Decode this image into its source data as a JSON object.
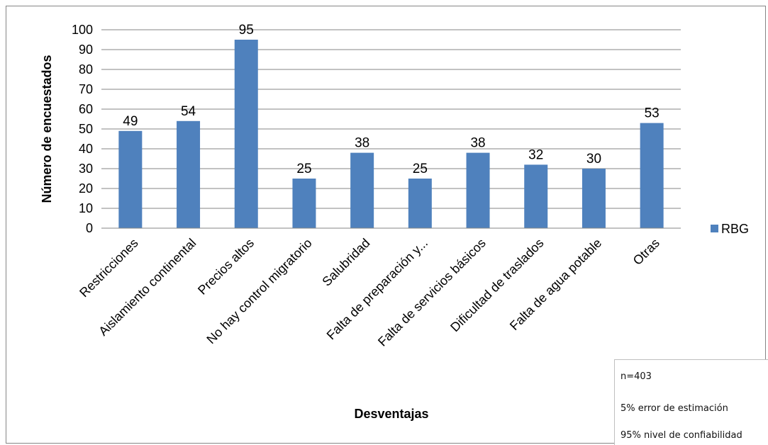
{
  "chart_data": {
    "type": "bar",
    "title": "",
    "xlabel": "Desventajas",
    "ylabel": "Número de encuestados",
    "ylim": [
      0,
      100
    ],
    "yticks": [
      0,
      10,
      20,
      30,
      40,
      50,
      60,
      70,
      80,
      90,
      100
    ],
    "grid": true,
    "legend_position": "right",
    "categories": [
      "Restricciones",
      "Aislamiento continental",
      "Precios altos",
      "No hay control migratorio",
      "Salubridad",
      "Falta de preparación y...",
      "Falta de servicios básicos",
      "Dificultad de traslados",
      "Falta de agua potable",
      "Otras"
    ],
    "series": [
      {
        "name": "RBG",
        "color": "#4f81bd",
        "values": [
          49,
          54,
          95,
          25,
          38,
          25,
          38,
          32,
          30,
          53
        ]
      }
    ]
  },
  "notes": {
    "sample": "n=403",
    "error": "5% error de estimación",
    "confidence": "95% nivel de confiabilidad"
  }
}
